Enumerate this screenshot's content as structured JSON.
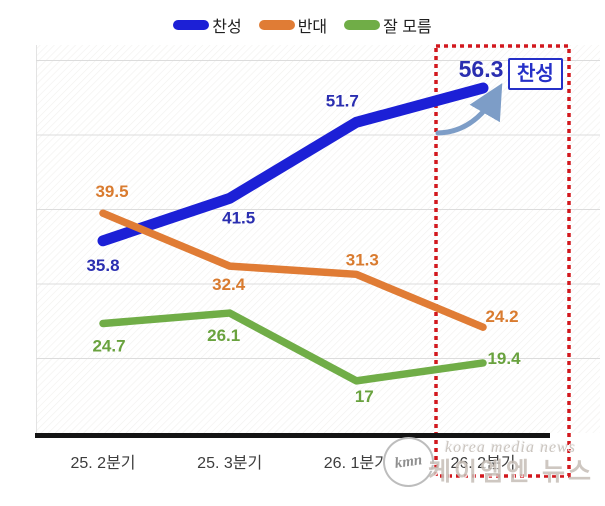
{
  "chart_data": {
    "type": "line",
    "categories": [
      "25. 2분기",
      "25. 3분기",
      "26. 1분기",
      "26. 2분기"
    ],
    "series": [
      {
        "name": "찬성",
        "values": [
          35.8,
          41.5,
          51.7,
          56.3
        ],
        "color": "#1c20d6",
        "label_color": "#2a2eb0"
      },
      {
        "name": "반대",
        "values": [
          39.5,
          32.4,
          31.3,
          24.2
        ],
        "color": "#e07c35",
        "label_color": "#d97b2f"
      },
      {
        "name": "잘 모름",
        "values": [
          24.7,
          26.1,
          17,
          19.4
        ],
        "color": "#70ad47",
        "label_color": "#69a23e"
      }
    ],
    "title": "",
    "xlabel": "",
    "ylabel": "",
    "ylim": [
      10,
      62
    ],
    "gridline_values": [
      20,
      30,
      40,
      50,
      60
    ],
    "grid": true,
    "legend_position": "top",
    "highlighted_category": "26. 2분기",
    "highlighted_point": {
      "series": "찬성",
      "value": 56.3
    }
  },
  "annotations": {
    "callout_label": "찬성"
  },
  "watermark": {
    "badge": "kmn",
    "line1": "korea media news",
    "line2": "케이엠엔 뉴스"
  },
  "colors": {
    "approve_line": "#1c20d6",
    "oppose_line": "#e07c35",
    "unsure_line": "#70ad47",
    "highlight_box": "#d2181e",
    "callout_border": "#2530c8",
    "trend_arrow": "#7d9dc7",
    "axis": "#141414",
    "gridline": "#dcdcdc"
  }
}
